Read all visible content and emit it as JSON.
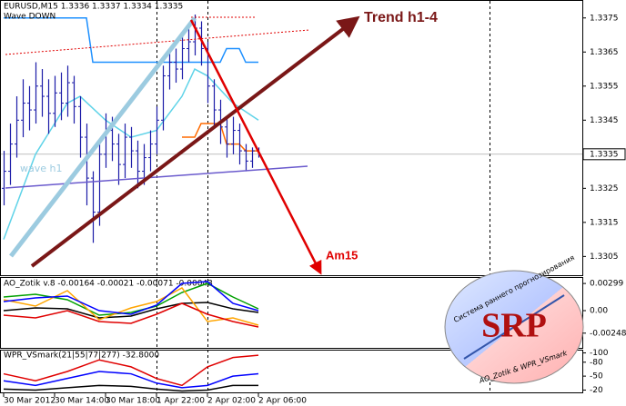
{
  "chart_data": [
    {
      "type": "ohlc",
      "title": "EURUSD,M15  1.3336 1.3337 1.3334 1.3335",
      "subtitle": "Wave DOWN",
      "annotations": [
        "wave h1",
        "Trend h1-4",
        "Am15"
      ],
      "bar_color": "#1c1ca8",
      "categories": [
        "30 Mar 2012",
        null,
        null,
        null,
        null,
        null,
        null,
        null,
        "30 Mar 14:00",
        null,
        null,
        null,
        null,
        null,
        null,
        null,
        "30 Mar 18:00",
        null,
        null,
        null,
        null,
        null,
        null,
        null,
        "1 Apr 22:00",
        null,
        null,
        null,
        null,
        null,
        null,
        null,
        "2 Apr 02:00",
        null,
        null,
        null,
        null,
        null,
        null,
        null,
        "2 Apr 06:00"
      ],
      "open": [
        1.3325,
        1.333,
        1.3338,
        1.3345,
        1.335,
        1.3348,
        1.3355,
        1.3352,
        1.3347,
        1.3353,
        1.335,
        1.3356,
        1.3349,
        1.334,
        1.3328,
        1.3318,
        1.3335,
        1.3342,
        1.3338,
        1.3332,
        1.334,
        1.3336,
        1.333,
        1.3334,
        1.3338,
        1.3345,
        1.3358,
        1.3362,
        1.336,
        1.3366,
        1.3368,
        1.3372,
        1.3366,
        1.3355,
        1.3348,
        1.3343,
        1.3338,
        1.3342,
        1.3336,
        1.3333,
        1.3336
      ],
      "high": [
        1.3336,
        1.3344,
        1.3352,
        1.3357,
        1.3355,
        1.3362,
        1.336,
        1.3357,
        1.3358,
        1.3359,
        1.3361,
        1.3358,
        1.3352,
        1.3344,
        1.333,
        1.3338,
        1.3347,
        1.3346,
        1.3341,
        1.3344,
        1.3343,
        1.3339,
        1.3338,
        1.3342,
        1.3349,
        1.3361,
        1.3366,
        1.3366,
        1.337,
        1.3373,
        1.3376,
        1.3374,
        1.3368,
        1.3357,
        1.3351,
        1.3346,
        1.3346,
        1.3344,
        1.3338,
        1.3337,
        1.3337
      ],
      "low": [
        1.332,
        1.3326,
        1.3334,
        1.334,
        1.3342,
        1.3344,
        1.3346,
        1.3341,
        1.3343,
        1.3345,
        1.3346,
        1.3344,
        1.3334,
        1.332,
        1.3309,
        1.3314,
        1.3331,
        1.3333,
        1.3326,
        1.3328,
        1.3331,
        1.3325,
        1.3326,
        1.333,
        1.3335,
        1.3342,
        1.3354,
        1.3356,
        1.3357,
        1.3362,
        1.3364,
        1.3361,
        1.335,
        1.3343,
        1.3338,
        1.3334,
        1.3335,
        1.3332,
        1.333,
        1.3331,
        1.3334
      ],
      "close": [
        1.333,
        1.3338,
        1.3345,
        1.335,
        1.3348,
        1.3355,
        1.3352,
        1.3347,
        1.3353,
        1.335,
        1.3356,
        1.3349,
        1.334,
        1.3328,
        1.3318,
        1.3335,
        1.3342,
        1.3338,
        1.3332,
        1.334,
        1.3336,
        1.333,
        1.3334,
        1.3338,
        1.3345,
        1.3358,
        1.3362,
        1.336,
        1.3366,
        1.3368,
        1.3372,
        1.3366,
        1.3355,
        1.3348,
        1.3343,
        1.3338,
        1.3342,
        1.3336,
        1.3333,
        1.3336,
        1.3335
      ],
      "series": [
        {
          "color": "#1e90ff",
          "x": [
            0,
            13,
            14,
            34,
            35,
            37,
            38,
            40
          ],
          "values": [
            1.3375,
            1.3375,
            1.3362,
            1.3362,
            1.3366,
            1.3366,
            1.3362,
            1.3362
          ]
        },
        {
          "color": "#5fd3e8",
          "x": [
            0,
            5,
            10,
            12,
            16,
            20,
            24,
            28,
            30,
            32,
            36,
            40
          ],
          "values": [
            1.331,
            1.3335,
            1.335,
            1.3352,
            1.3345,
            1.334,
            1.3342,
            1.3352,
            1.336,
            1.3358,
            1.335,
            1.3345
          ]
        },
        {
          "color": "#ff6a00",
          "x": [
            28,
            30,
            31,
            34,
            35,
            37,
            38,
            40
          ],
          "values": [
            1.334,
            1.334,
            1.3344,
            1.3344,
            1.3338,
            1.3338,
            1.3336,
            1.3336
          ]
        }
      ],
      "ylim": [
        1.32995,
        1.338
      ],
      "yticks": [
        1.3375,
        1.3365,
        1.3355,
        1.3345,
        1.3335,
        1.3325,
        1.3315,
        1.3305
      ]
    },
    {
      "type": "line",
      "title": "AO_Zotik v.8 -0.00164 -0.00021 -0.00071 -0.00043",
      "series": [
        {
          "color": "#00a000",
          "x": [
            0,
            5,
            10,
            15,
            20,
            24,
            28,
            32,
            36,
            40
          ],
          "values": [
            0.0015,
            0.0018,
            0.0012,
            -0.0005,
            -0.0002,
            0.0005,
            0.002,
            0.003,
            0.0015,
            0.0002
          ]
        },
        {
          "color": "#000000",
          "x": [
            0,
            5,
            10,
            15,
            20,
            24,
            28,
            32,
            36,
            40
          ],
          "values": [
            0.0,
            0.0003,
            0.0002,
            -0.0008,
            -0.0006,
            0.0002,
            0.0008,
            0.0009,
            0.0002,
            -0.0002
          ]
        },
        {
          "color": "#ffa500",
          "x": [
            0,
            5,
            10,
            15,
            20,
            24,
            28,
            32,
            36,
            40
          ],
          "values": [
            0.0012,
            0.0005,
            0.0022,
            -0.001,
            0.0003,
            0.001,
            0.0025,
            -0.0012,
            -0.0008,
            -0.0016
          ]
        },
        {
          "color": "#e00000",
          "x": [
            0,
            5,
            10,
            15,
            20,
            24,
            28,
            32,
            36,
            40
          ],
          "values": [
            -0.0005,
            -0.0008,
            0.0,
            -0.0012,
            -0.0014,
            -0.0004,
            0.0008,
            -0.0004,
            -0.0012,
            -0.0018
          ]
        },
        {
          "color": "#0000ff",
          "x": [
            0,
            5,
            10,
            15,
            20,
            24,
            28,
            32,
            36,
            40
          ],
          "values": [
            0.001,
            0.0014,
            0.0016,
            0.0,
            -0.0004,
            0.0006,
            0.003,
            0.0032,
            0.0008,
            0.0
          ]
        }
      ],
      "ylim": [
        -0.0041,
        0.0036
      ],
      "yticks": [
        0.00299,
        {
          "value": 0,
          "label": "0.00"
        },
        -0.00248
      ]
    },
    {
      "type": "line",
      "title": "WPR_VSmark(21|55|77|277) -32.8000",
      "series": [
        {
          "color": "#000000",
          "x": [
            0,
            5,
            10,
            15,
            20,
            24,
            28,
            32,
            36,
            40
          ],
          "values": [
            -22,
            -20,
            -25,
            -30,
            -28,
            -22,
            -18,
            -20,
            -30,
            -30
          ]
        },
        {
          "color": "#0000ff",
          "x": [
            0,
            5,
            10,
            15,
            20,
            24,
            28,
            32,
            36,
            40
          ],
          "values": [
            -40,
            -30,
            -45,
            -60,
            -55,
            -35,
            -25,
            -30,
            -50,
            -55
          ]
        },
        {
          "color": "#e00000",
          "x": [
            0,
            5,
            10,
            15,
            20,
            24,
            28,
            32,
            36,
            40
          ],
          "values": [
            -55,
            -40,
            -60,
            -85,
            -70,
            -45,
            -30,
            -70,
            -90,
            -95
          ]
        }
      ],
      "ylim": [
        -15,
        -105
      ],
      "yticks": [
        -20,
        -50,
        -80,
        -100
      ]
    }
  ],
  "logo": {
    "arc_text": "Система раннего прогнозирования",
    "name": "SRP",
    "footer": "AO_Zotik & WPR_VSmark"
  }
}
